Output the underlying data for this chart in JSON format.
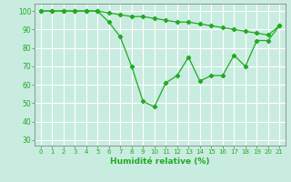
{
  "x": [
    0,
    1,
    2,
    3,
    4,
    5,
    6,
    7,
    8,
    9,
    10,
    11,
    12,
    13,
    14,
    15,
    16,
    17,
    18,
    19,
    20,
    21
  ],
  "line1": [
    100,
    100,
    100,
    100,
    100,
    100,
    99,
    98,
    97,
    97,
    96,
    95,
    94,
    94,
    93,
    92,
    91,
    90,
    89,
    88,
    87,
    92
  ],
  "line2": [
    100,
    100,
    100,
    100,
    100,
    100,
    94,
    86,
    70,
    51,
    48,
    61,
    65,
    75,
    62,
    65,
    65,
    76,
    70,
    84,
    84,
    92
  ],
  "line_color": "#22aa22",
  "bg_color": "#c8ece0",
  "grid_color": "#ffffff",
  "xlabel": "Humidité relative (%)",
  "ylim": [
    27,
    104
  ],
  "xlim": [
    -0.5,
    21.5
  ],
  "yticks": [
    30,
    40,
    50,
    60,
    70,
    80,
    90,
    100
  ],
  "xticks": [
    0,
    1,
    2,
    3,
    4,
    5,
    6,
    7,
    8,
    9,
    10,
    11,
    12,
    13,
    14,
    15,
    16,
    17,
    18,
    19,
    20,
    21
  ]
}
